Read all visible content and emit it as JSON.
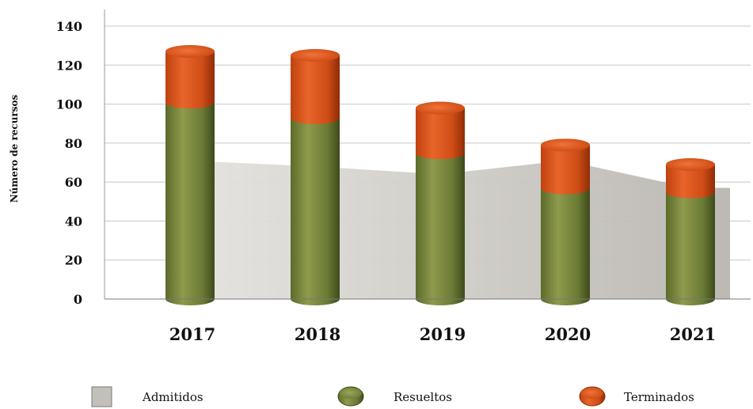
{
  "chart_data": {
    "type": "bar",
    "subtype": "stacked-cylinder-with-area",
    "ylabel": "Número de recursos",
    "ylim": [
      0,
      140
    ],
    "yticks": [
      "0",
      "20",
      "40",
      "60",
      "80",
      "100",
      "120",
      "140"
    ],
    "categories": [
      "2017",
      "2018",
      "2019",
      "2020",
      "2021"
    ],
    "grid": true,
    "legend_position": "bottom",
    "series": [
      {
        "name": "Admitidos",
        "kind": "area",
        "color": "#c9c6c0",
        "values": [
          71,
          68,
          64,
          71,
          57
        ]
      },
      {
        "name": "Resueltos",
        "kind": "bar",
        "color": "#6e7d36",
        "values": [
          101,
          93,
          75,
          57,
          55
        ]
      },
      {
        "name": "Terminados",
        "kind": "bar-stacked",
        "color": "#d9541a",
        "values": [
          26,
          32,
          23,
          22,
          14
        ]
      }
    ]
  }
}
